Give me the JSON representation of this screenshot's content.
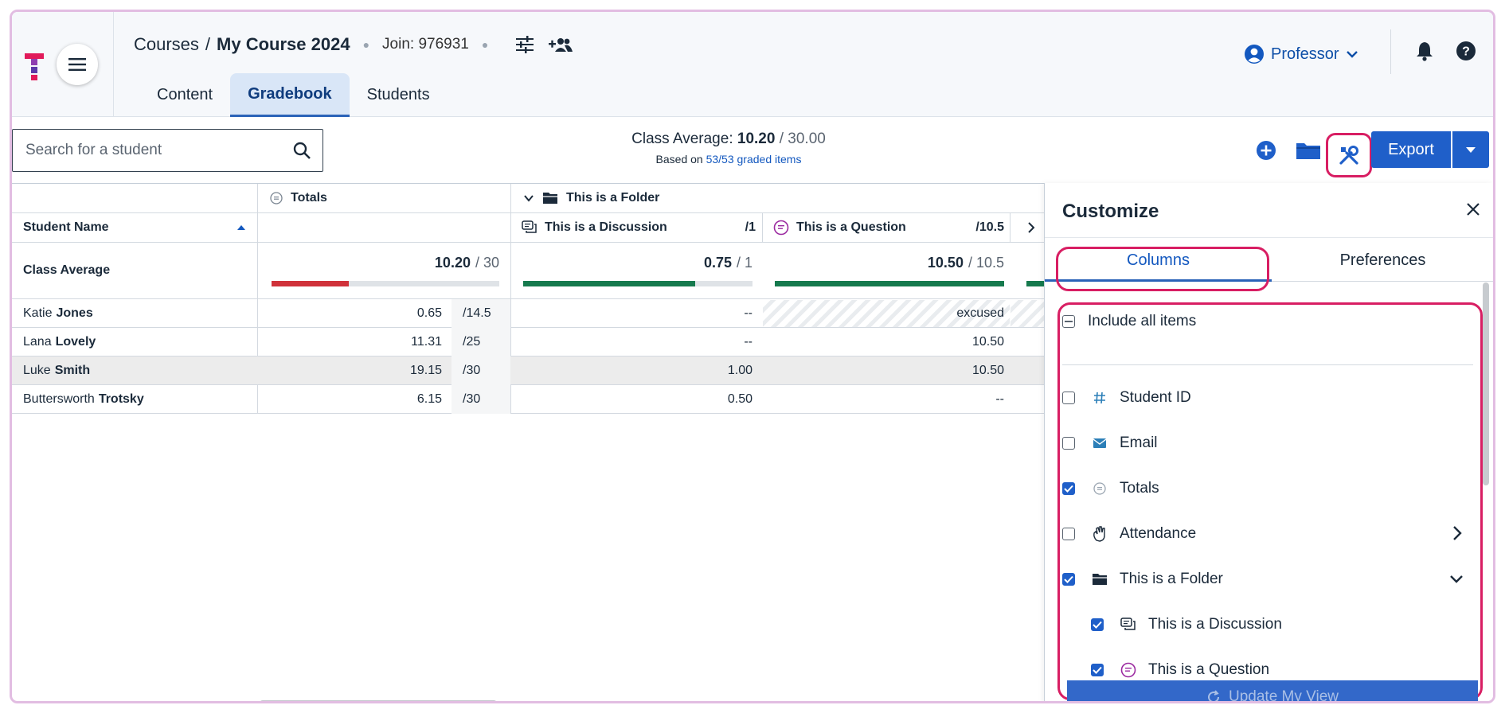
{
  "header": {
    "breadcrumb_root": "Courses",
    "breadcrumb_sep": "/",
    "course_name": "My Course 2024",
    "join_code": "Join: 976931",
    "tabs": [
      "Content",
      "Gradebook",
      "Students"
    ],
    "active_tab": "Gradebook",
    "profile_label": "Professor"
  },
  "toolbar": {
    "search_placeholder": "Search for a student",
    "class_average_label": "Class Average:",
    "class_average_value": "10.20",
    "class_average_total": "/ 30.00",
    "based_on_prefix": "Based on",
    "based_on_link": "53/53 graded items",
    "export_label": "Export"
  },
  "gradebook": {
    "totals_header": "Totals",
    "folder_header": "This is a Folder",
    "student_name_header": "Student Name",
    "discussion_header": "This is a Discussion",
    "discussion_points": "/1",
    "question_header": "This is a Question",
    "question_points": "/10.5",
    "class_average_row": {
      "label": "Class Average",
      "totals_value": "10.20",
      "totals_den": "/ 30",
      "totals_fraction": 0.34,
      "discussion_value": "0.75",
      "discussion_den": "/ 1",
      "discussion_fraction": 0.75,
      "question_value": "10.50",
      "question_den": "/ 10.5",
      "question_fraction": 1.0
    },
    "students": [
      {
        "first": "Katie",
        "last": "Jones",
        "total": "0.65",
        "total_den": "/14.5",
        "discussion": "--",
        "question": "excused"
      },
      {
        "first": "Lana",
        "last": "Lovely",
        "total": "11.31",
        "total_den": "/25",
        "discussion": "--",
        "question": "10.50"
      },
      {
        "first": "Luke",
        "last": "Smith",
        "total": "19.15",
        "total_den": "/30",
        "discussion": "1.00",
        "question": "10.50"
      },
      {
        "first": "Buttersworth",
        "last": "Trotsky",
        "total": "6.15",
        "total_den": "/30",
        "discussion": "0.50",
        "question": "--"
      }
    ]
  },
  "customize": {
    "title": "Customize",
    "tab_columns": "Columns",
    "tab_preferences": "Preferences",
    "include_all": "Include all items",
    "options": [
      {
        "label": "Student ID",
        "checked": false
      },
      {
        "label": "Email",
        "checked": false
      },
      {
        "label": "Totals",
        "checked": true
      },
      {
        "label": "Attendance",
        "checked": false
      },
      {
        "label": "This is a Folder",
        "checked": true
      },
      {
        "label": "This is a Discussion",
        "checked": true
      },
      {
        "label": "This is a Question",
        "checked": true
      }
    ],
    "update_button": "Update My View"
  },
  "colors": {
    "accent": "#1f5fc9",
    "highlight_ring": "#d81e63",
    "bar_red": "#d0323a",
    "bar_green": "#167a4e"
  }
}
